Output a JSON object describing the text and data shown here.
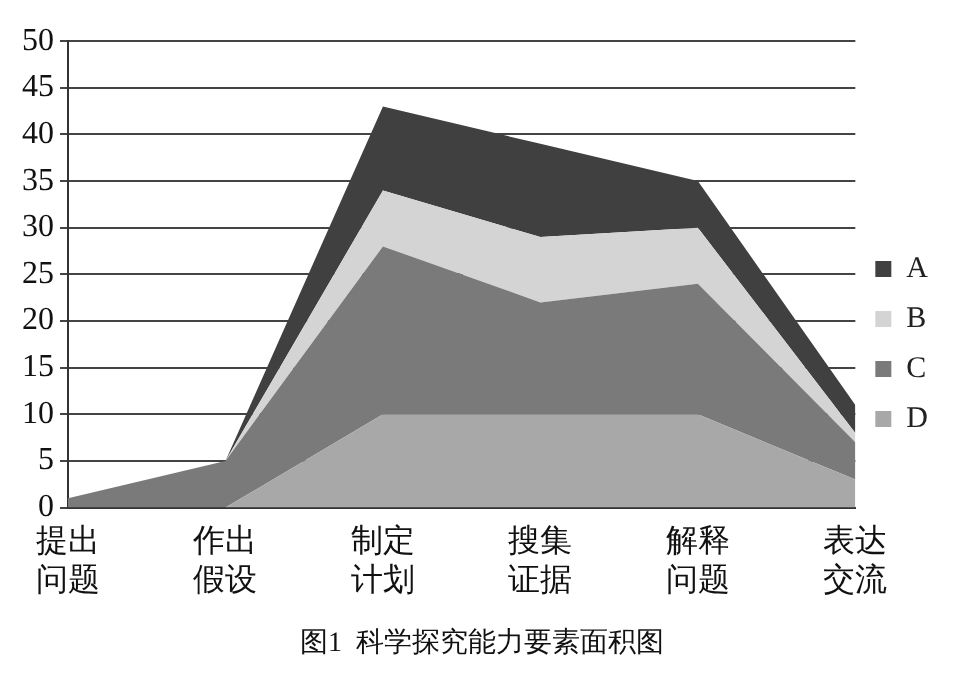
{
  "chart_data": {
    "type": "area",
    "stacked": true,
    "title": "图1  科学探究能力要素面积图",
    "categories": [
      "提出问题",
      "作出假设",
      "制定计划",
      "搜集证据",
      "解释问题",
      "表达交流"
    ],
    "series": [
      {
        "name": "D",
        "color": "#a8a8a8",
        "values": [
          0,
          0,
          10,
          10,
          10,
          3
        ]
      },
      {
        "name": "C",
        "color": "#7a7a7a",
        "values": [
          1,
          5,
          18,
          12,
          14,
          4
        ]
      },
      {
        "name": "B",
        "color": "#d4d4d4",
        "values": [
          0,
          0,
          6,
          7,
          6,
          1
        ]
      },
      {
        "name": "A",
        "color": "#404040",
        "values": [
          0,
          0,
          9,
          10,
          5,
          3
        ]
      }
    ],
    "ylim": [
      0,
      50
    ],
    "yticks": [
      0,
      5,
      10,
      15,
      20,
      25,
      30,
      35,
      40,
      45,
      50
    ],
    "grid": "y",
    "legend": "right",
    "marker": "none"
  }
}
